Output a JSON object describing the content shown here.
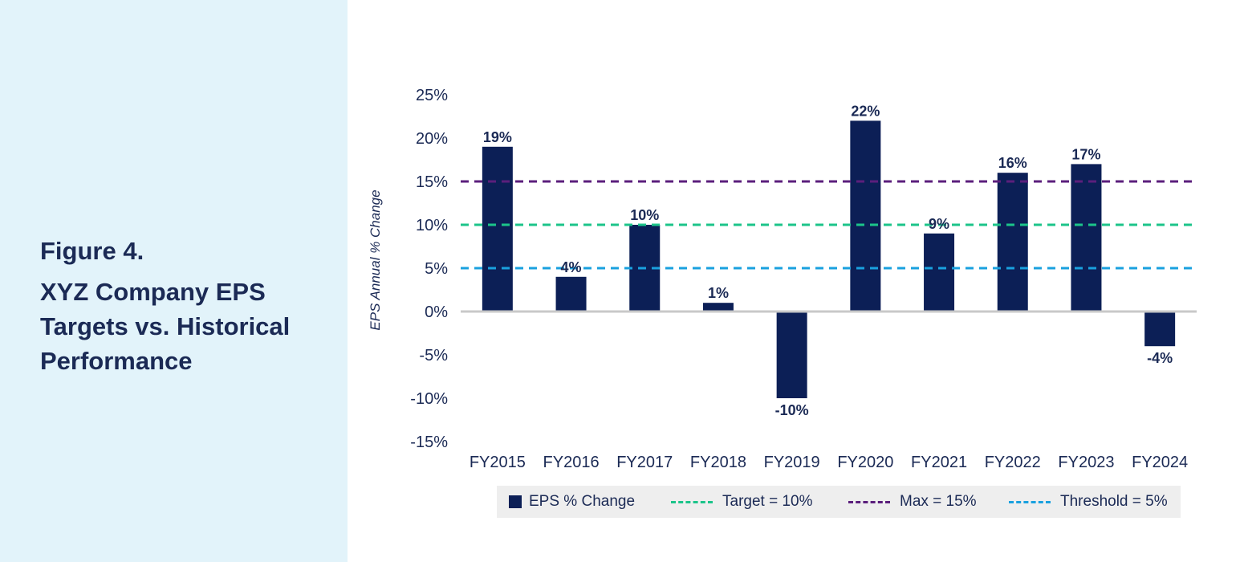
{
  "figure": {
    "label": "Figure 4.",
    "title": "XYZ Company EPS Targets vs. Historical Performance"
  },
  "chart_data": {
    "type": "bar",
    "title": "XYZ Company EPS Targets vs. Historical Performance",
    "xlabel": "",
    "ylabel": "EPS Annual % Change",
    "ylim": [
      -15,
      25
    ],
    "yticks": [
      25,
      20,
      15,
      10,
      5,
      0,
      -5,
      -10,
      -15
    ],
    "ytick_labels": [
      "25%",
      "20%",
      "15%",
      "10%",
      "5%",
      "0%",
      "-5%",
      "-10%",
      "-15%"
    ],
    "grid": false,
    "categories": [
      "FY2015",
      "FY2016",
      "FY2017",
      "FY2018",
      "FY2019",
      "FY2020",
      "FY2021",
      "FY2022",
      "FY2023",
      "FY2024"
    ],
    "series": [
      {
        "name": "EPS % Change",
        "values": [
          19,
          4,
          10,
          1,
          -10,
          22,
          9,
          16,
          17,
          -4
        ],
        "labels": [
          "19%",
          "4%",
          "10%",
          "1%",
          "-10%",
          "22%",
          "9%",
          "16%",
          "17%",
          "-4%"
        ],
        "color": "#0c1f56"
      }
    ],
    "reference_lines": [
      {
        "name": "Target = 10%",
        "value": 10,
        "color": "#1cc48a"
      },
      {
        "name": "Max = 15%",
        "value": 15,
        "color": "#5b1f7c"
      },
      {
        "name": "Threshold = 5%",
        "value": 5,
        "color": "#1aa1df"
      }
    ],
    "zero_line_color": "#c8c8c8",
    "legend_position": "bottom"
  },
  "legend": {
    "items": [
      {
        "label": "EPS % Change",
        "color": "#0c1f56"
      },
      {
        "label": "Target = 10%",
        "color": "#1cc48a"
      },
      {
        "label": "Max = 15%",
        "color": "#5b1f7c"
      },
      {
        "label": "Threshold = 5%",
        "color": "#1aa1df"
      }
    ]
  }
}
